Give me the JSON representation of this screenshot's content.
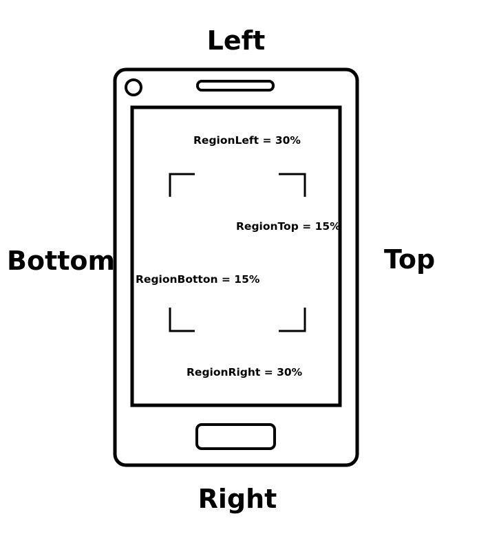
{
  "orientation_labels": {
    "left": "Left",
    "right": "Right",
    "top": "Top",
    "bottom": "Bottom"
  },
  "region_labels": {
    "left": "RegionLeft = 30%",
    "top": "RegionTop = 15%",
    "bottom": "RegionBotton = 15%",
    "right": "RegionRight = 30%"
  },
  "colors": {
    "stroke": "#000000",
    "background": "#ffffff"
  },
  "icons": [
    "phone-outline",
    "camera-icon",
    "speaker-icon",
    "home-button-icon",
    "scan-frame-corner-icon"
  ]
}
